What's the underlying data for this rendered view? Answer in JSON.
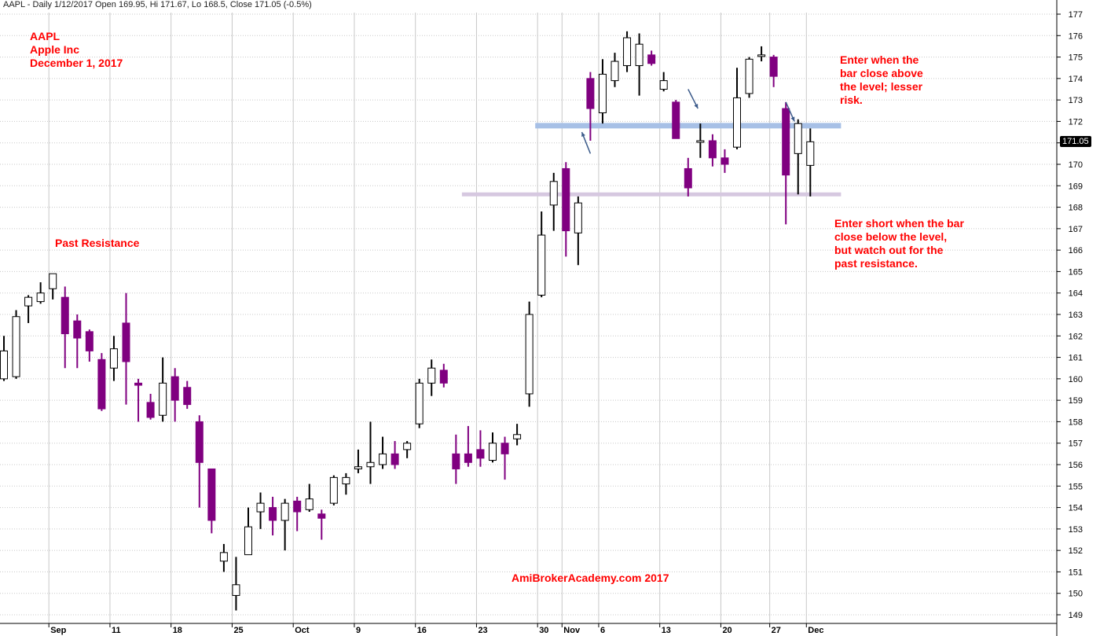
{
  "header": "AAPL - Daily 1/12/2017 Open 169.95, Hi 171.67, Lo 168.5, Close 171.05 (-0.5%)",
  "annotations": {
    "ticker_lines": [
      "AAPL",
      "Apple Inc",
      "December 1, 2017"
    ],
    "past_resistance": "Past Resistance",
    "enter_above": "Enter when the bar close above the level; lesser risk.",
    "enter_below": "Enter short when the bar close below the level, but watch out for the past resistance.",
    "watermark": "AmiBrokerAcademy.com  2017"
  },
  "last_price_label": "171.05",
  "colors": {
    "up_fill": "#ffffff",
    "down_fill": "#800080",
    "wick": "#000000",
    "resistance_line": "#a7c0e6",
    "support_line": "#d6c8e0",
    "annotation_text": "#ff0000",
    "grid": "#c8c8c8"
  },
  "chart_data": {
    "type": "candlestick",
    "ylim": [
      148.5,
      177.5
    ],
    "y_ticks": [
      149,
      150,
      151,
      152,
      153,
      154,
      155,
      156,
      157,
      158,
      159,
      160,
      161,
      162,
      163,
      164,
      165,
      166,
      167,
      168,
      169,
      170,
      171,
      172,
      173,
      174,
      175,
      176,
      177
    ],
    "x_labels": [
      {
        "label": "Sep",
        "bar": 4
      },
      {
        "label": "11",
        "bar": 9
      },
      {
        "label": "18",
        "bar": 14
      },
      {
        "label": "25",
        "bar": 19
      },
      {
        "label": "Oct",
        "bar": 24
      },
      {
        "label": "9",
        "bar": 29
      },
      {
        "label": "16",
        "bar": 34
      },
      {
        "label": "23",
        "bar": 39
      },
      {
        "label": "30",
        "bar": 44
      },
      {
        "label": "Nov",
        "bar": 46
      },
      {
        "label": "6",
        "bar": 49
      },
      {
        "label": "13",
        "bar": 54
      },
      {
        "label": "20",
        "bar": 59
      },
      {
        "label": "27",
        "bar": 63
      },
      {
        "label": "Dec",
        "bar": 66
      }
    ],
    "candles": [
      {
        "o": 160.0,
        "h": 162.0,
        "l": 159.9,
        "c": 161.3
      },
      {
        "o": 160.1,
        "h": 163.2,
        "l": 160.0,
        "c": 162.9
      },
      {
        "o": 163.4,
        "h": 163.9,
        "l": 162.6,
        "c": 163.8
      },
      {
        "o": 163.6,
        "h": 164.5,
        "l": 163.5,
        "c": 164.0
      },
      {
        "o": 164.2,
        "h": 164.9,
        "l": 163.7,
        "c": 164.9
      },
      {
        "o": 163.8,
        "h": 164.3,
        "l": 160.5,
        "c": 162.1
      },
      {
        "o": 162.7,
        "h": 163.0,
        "l": 160.5,
        "c": 161.9
      },
      {
        "o": 162.2,
        "h": 162.3,
        "l": 160.8,
        "c": 161.3
      },
      {
        "o": 160.9,
        "h": 161.2,
        "l": 158.5,
        "c": 158.6
      },
      {
        "o": 160.5,
        "h": 162.0,
        "l": 159.9,
        "c": 161.4
      },
      {
        "o": 162.6,
        "h": 164.0,
        "l": 158.8,
        "c": 160.8
      },
      {
        "o": 159.8,
        "h": 160.0,
        "l": 158.0,
        "c": 159.7
      },
      {
        "o": 158.9,
        "h": 159.3,
        "l": 158.1,
        "c": 158.2
      },
      {
        "o": 158.3,
        "h": 161.0,
        "l": 158.0,
        "c": 159.8
      },
      {
        "o": 160.1,
        "h": 160.5,
        "l": 158.0,
        "c": 159.0
      },
      {
        "o": 159.6,
        "h": 159.9,
        "l": 158.6,
        "c": 158.8
      },
      {
        "o": 158.0,
        "h": 158.3,
        "l": 154.0,
        "c": 156.1
      },
      {
        "o": 155.8,
        "h": 155.8,
        "l": 152.8,
        "c": 153.4
      },
      {
        "o": 151.5,
        "h": 152.3,
        "l": 151.0,
        "c": 151.9
      },
      {
        "o": 149.9,
        "h": 151.7,
        "l": 149.2,
        "c": 150.4
      },
      {
        "o": 151.8,
        "h": 154.0,
        "l": 151.8,
        "c": 153.1
      },
      {
        "o": 153.8,
        "h": 154.7,
        "l": 153.0,
        "c": 154.2
      },
      {
        "o": 154.0,
        "h": 154.5,
        "l": 152.7,
        "c": 153.4
      },
      {
        "o": 153.4,
        "h": 154.4,
        "l": 152.0,
        "c": 154.2
      },
      {
        "o": 154.3,
        "h": 154.5,
        "l": 152.9,
        "c": 153.8
      },
      {
        "o": 153.9,
        "h": 155.1,
        "l": 153.8,
        "c": 154.4
      },
      {
        "o": 153.7,
        "h": 153.9,
        "l": 152.5,
        "c": 153.5
      },
      {
        "o": 154.2,
        "h": 155.5,
        "l": 154.1,
        "c": 155.4
      },
      {
        "o": 155.1,
        "h": 155.6,
        "l": 154.6,
        "c": 155.4
      },
      {
        "o": 155.8,
        "h": 156.7,
        "l": 155.6,
        "c": 155.9
      },
      {
        "o": 155.9,
        "h": 158.0,
        "l": 155.1,
        "c": 156.1
      },
      {
        "o": 156.0,
        "h": 157.3,
        "l": 155.8,
        "c": 156.5
      },
      {
        "o": 156.5,
        "h": 157.1,
        "l": 155.8,
        "c": 156.0
      },
      {
        "o": 156.7,
        "h": 157.1,
        "l": 156.3,
        "c": 157.0
      },
      {
        "o": 157.9,
        "h": 160.0,
        "l": 157.7,
        "c": 159.8
      },
      {
        "o": 159.8,
        "h": 160.9,
        "l": 159.2,
        "c": 160.5
      },
      {
        "o": 160.4,
        "h": 160.7,
        "l": 159.6,
        "c": 159.8
      },
      {
        "o": 156.5,
        "h": 157.4,
        "l": 155.1,
        "c": 155.8
      },
      {
        "o": 156.5,
        "h": 157.8,
        "l": 155.9,
        "c": 156.1
      },
      {
        "o": 156.7,
        "h": 157.6,
        "l": 155.9,
        "c": 156.3
      },
      {
        "o": 156.2,
        "h": 157.5,
        "l": 156.1,
        "c": 157.0
      },
      {
        "o": 157.0,
        "h": 157.3,
        "l": 155.3,
        "c": 156.5
      },
      {
        "o": 157.2,
        "h": 157.9,
        "l": 156.9,
        "c": 157.4
      },
      {
        "o": 159.3,
        "h": 163.6,
        "l": 158.7,
        "c": 163.0
      },
      {
        "o": 163.9,
        "h": 167.8,
        "l": 163.8,
        "c": 166.7
      },
      {
        "o": 168.1,
        "h": 169.6,
        "l": 166.9,
        "c": 169.2
      },
      {
        "o": 169.8,
        "h": 170.1,
        "l": 165.7,
        "c": 166.9
      },
      {
        "o": 166.8,
        "h": 168.5,
        "l": 165.3,
        "c": 168.2
      },
      {
        "o": 174.0,
        "h": 174.3,
        "l": 171.1,
        "c": 172.6
      },
      {
        "o": 172.4,
        "h": 174.9,
        "l": 171.9,
        "c": 174.2
      },
      {
        "o": 173.9,
        "h": 175.2,
        "l": 173.6,
        "c": 174.8
      },
      {
        "o": 174.6,
        "h": 176.2,
        "l": 174.3,
        "c": 175.9
      },
      {
        "o": 174.6,
        "h": 176.1,
        "l": 173.2,
        "c": 175.6
      },
      {
        "o": 175.1,
        "h": 175.3,
        "l": 174.6,
        "c": 174.7
      },
      {
        "o": 173.5,
        "h": 174.3,
        "l": 173.4,
        "c": 173.9
      },
      {
        "o": 172.9,
        "h": 173.0,
        "l": 171.2,
        "c": 171.2
      },
      {
        "o": 169.8,
        "h": 170.3,
        "l": 168.5,
        "c": 168.9
      },
      {
        "o": 171.1,
        "h": 171.9,
        "l": 170.3,
        "c": 171.1
      },
      {
        "o": 171.1,
        "h": 171.4,
        "l": 169.9,
        "c": 170.3
      },
      {
        "o": 170.3,
        "h": 170.7,
        "l": 169.6,
        "c": 170.0
      },
      {
        "o": 170.8,
        "h": 174.5,
        "l": 170.7,
        "c": 173.1
      },
      {
        "o": 173.3,
        "h": 175.0,
        "l": 173.1,
        "c": 174.9
      },
      {
        "o": 175.1,
        "h": 175.5,
        "l": 174.8,
        "c": 175.1
      },
      {
        "o": 175.0,
        "h": 175.1,
        "l": 173.6,
        "c": 174.1
      },
      {
        "o": 172.6,
        "h": 172.9,
        "l": 167.2,
        "c": 169.5
      },
      {
        "o": 170.5,
        "h": 172.1,
        "l": 168.6,
        "c": 171.9
      },
      {
        "o": 169.95,
        "h": 171.67,
        "l": 168.5,
        "c": 171.05
      }
    ],
    "horizontal_lines": [
      {
        "price": 171.8,
        "from_bar": 44,
        "to_bar": 68,
        "role": "resistance"
      },
      {
        "price": 168.6,
        "from_bar": 38,
        "to_bar": 68,
        "role": "support"
      }
    ],
    "arrows": [
      {
        "from": [
          48.0,
          170.5
        ],
        "to": [
          47.3,
          171.5
        ]
      },
      {
        "from": [
          56.0,
          173.5
        ],
        "to": [
          56.8,
          172.6
        ]
      },
      {
        "from": [
          64.0,
          172.9
        ],
        "to": [
          64.7,
          172.0
        ]
      }
    ]
  }
}
